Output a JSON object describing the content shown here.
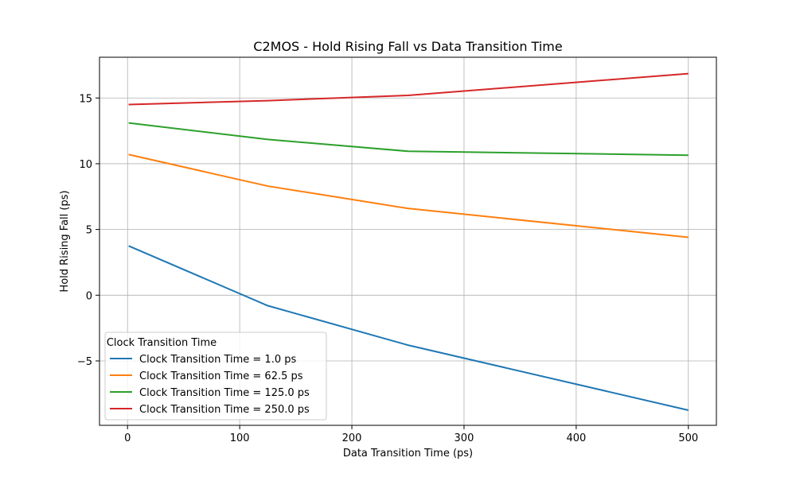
{
  "chart_data": {
    "type": "line",
    "title": "C2MOS - Hold Rising Fall vs Data Transition Time",
    "xlabel": "Data Transition Time (ps)",
    "ylabel": "Hold Rising Fall (ps)",
    "xlim": [
      -25,
      525
    ],
    "ylim": [
      -9.9,
      18.1
    ],
    "xticks": [
      0,
      100,
      200,
      300,
      400,
      500
    ],
    "yticks": [
      -5,
      0,
      5,
      10,
      15
    ],
    "xtick_labels": [
      "0",
      "100",
      "200",
      "300",
      "400",
      "500"
    ],
    "ytick_labels": [
      "−5",
      "0",
      "5",
      "10",
      "15"
    ],
    "grid": true,
    "legend": {
      "title": "Clock Transition Time",
      "placement": "lower-left"
    },
    "x": [
      1,
      125,
      250,
      500
    ],
    "series": [
      {
        "name": "Clock Transition Time = 1.0 ps",
        "color": "#1f77b4",
        "values": [
          3.75,
          -0.8,
          -3.8,
          -8.75
        ]
      },
      {
        "name": "Clock Transition Time = 62.5 ps",
        "color": "#ff7f0e",
        "values": [
          10.7,
          8.3,
          6.6,
          4.4
        ]
      },
      {
        "name": "Clock Transition Time = 125.0 ps",
        "color": "#2ca02c",
        "values": [
          13.1,
          11.85,
          10.95,
          10.65
        ]
      },
      {
        "name": "Clock Transition Time = 250.0 ps",
        "color": "#d62728",
        "values": [
          14.5,
          14.8,
          15.2,
          16.85
        ]
      }
    ]
  }
}
